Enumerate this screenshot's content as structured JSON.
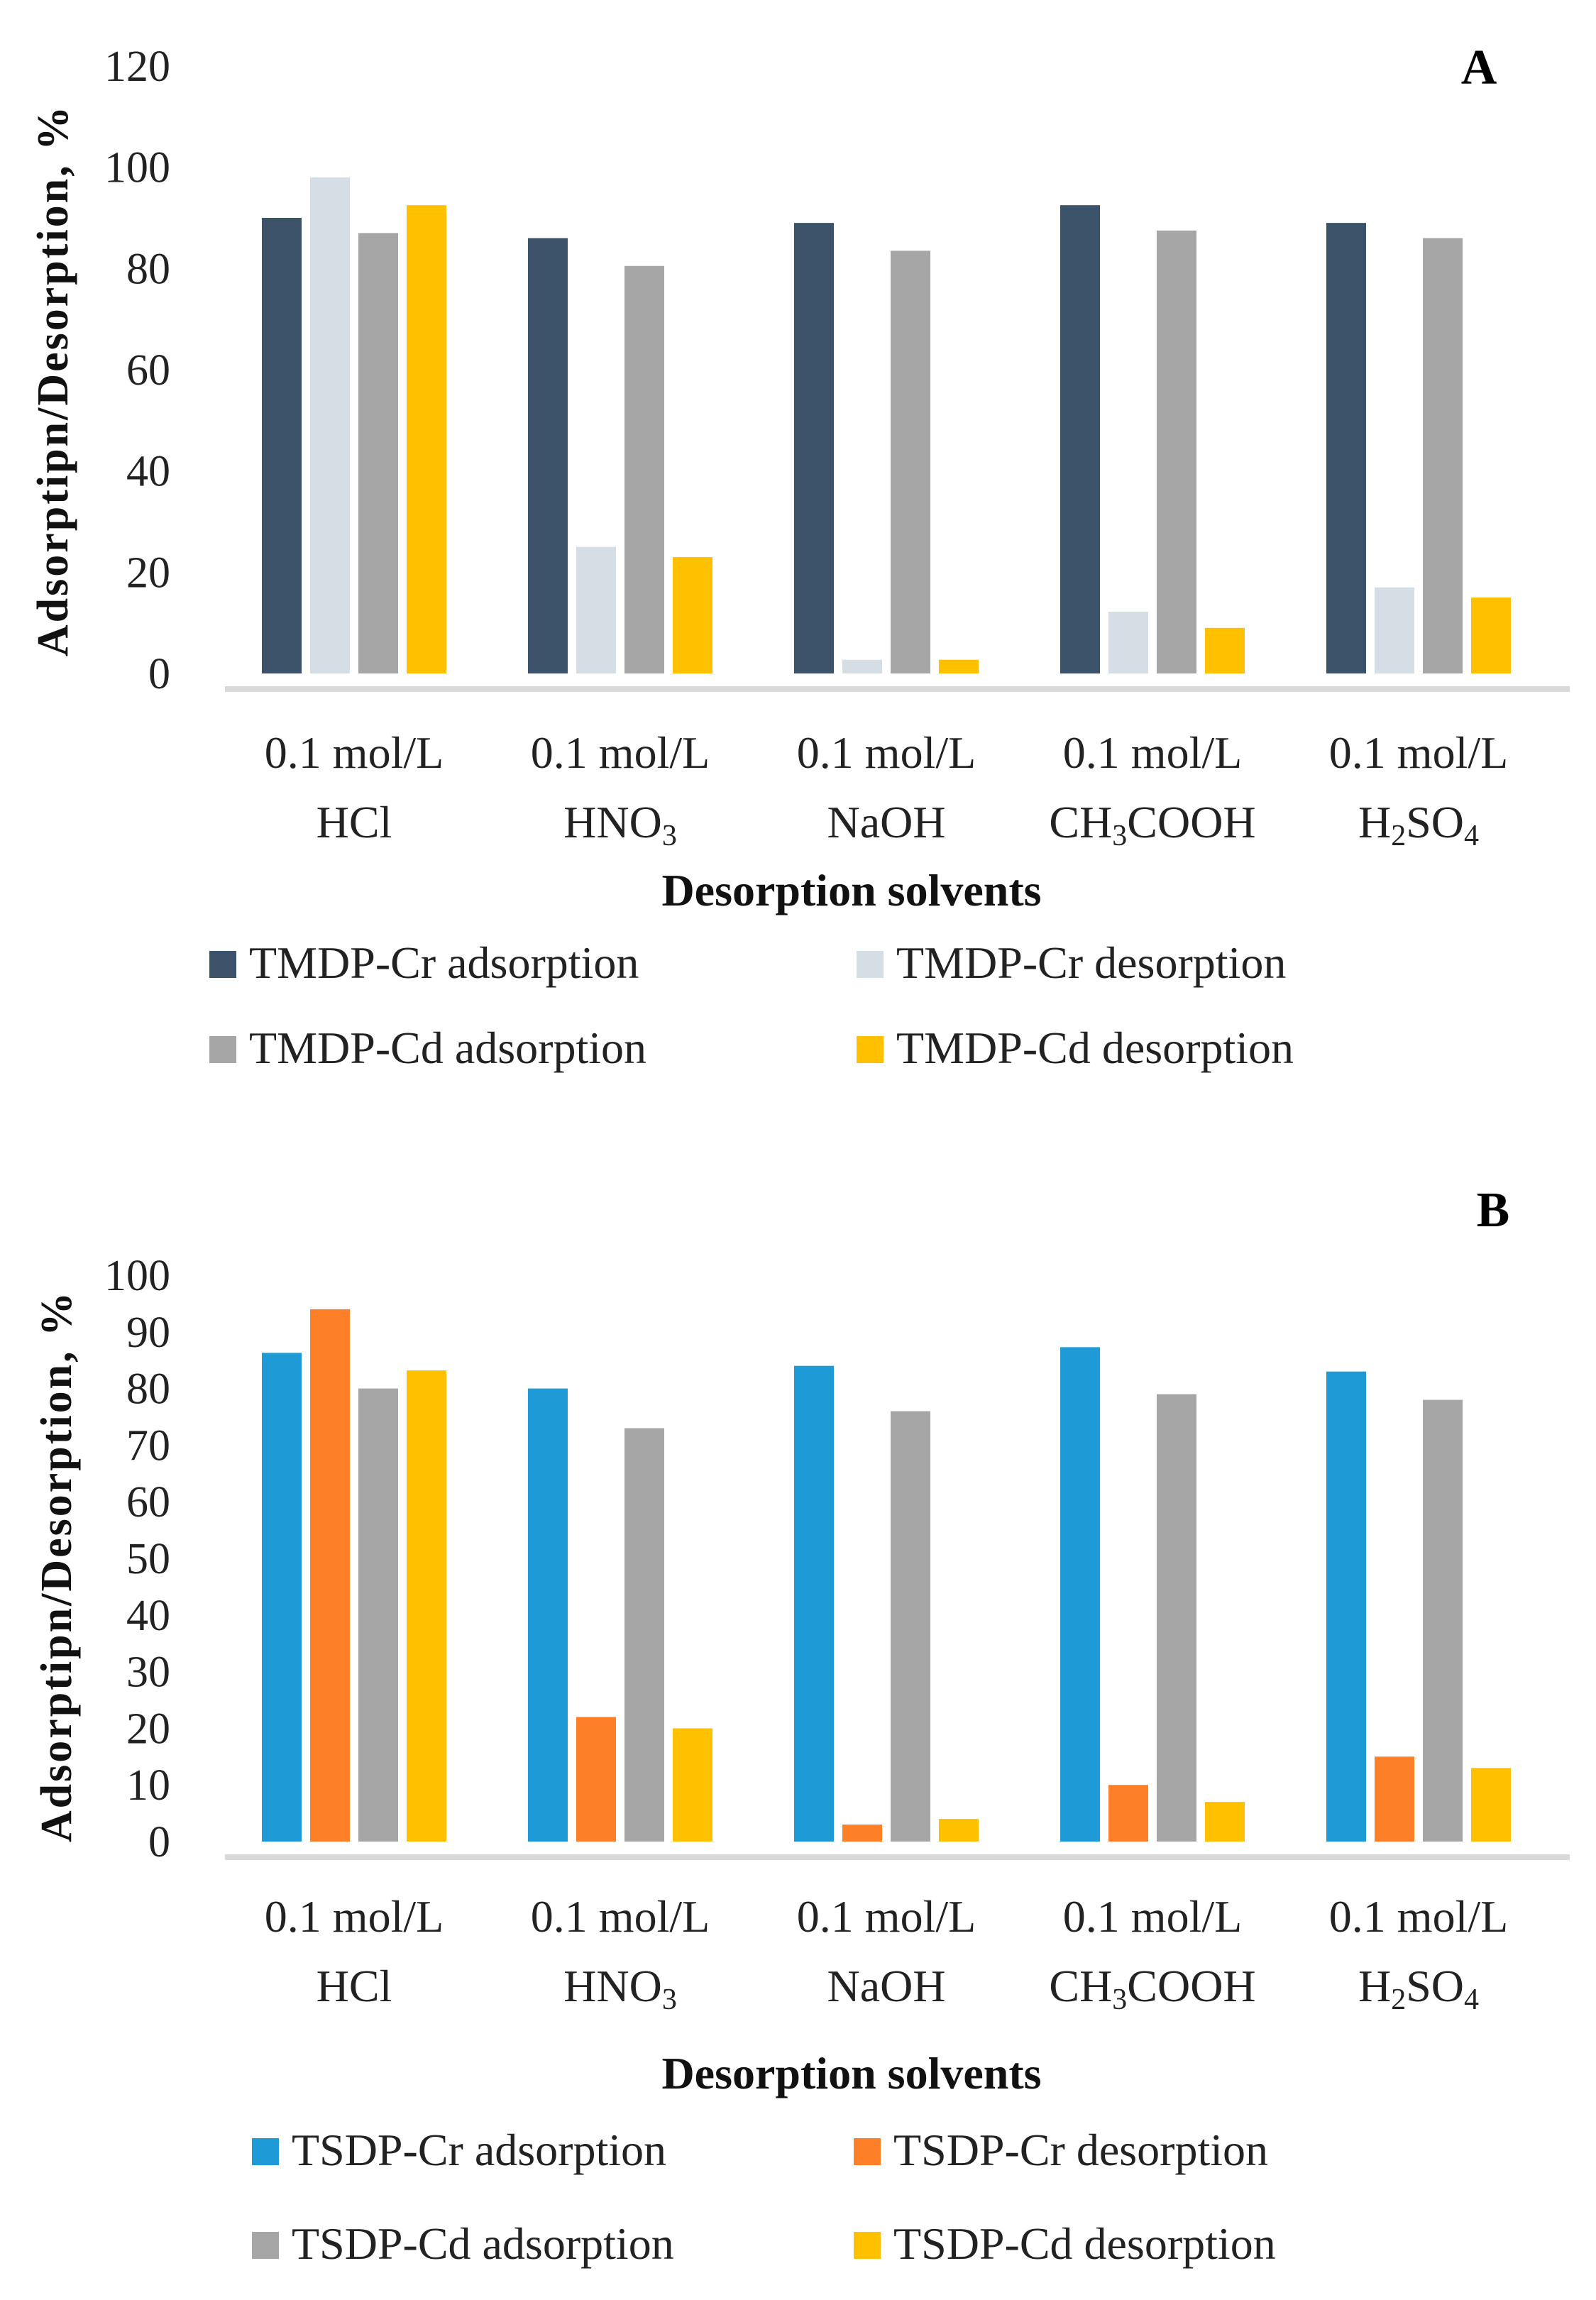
{
  "chart_data": [
    {
      "type": "bar",
      "panel_label": "A",
      "title": "",
      "xlabel": "Desorption solvents",
      "ylabel": "Adsorptipn/Desorption,  %",
      "ylim": [
        0,
        120
      ],
      "yticks": [
        "0",
        "20",
        "40",
        "60",
        "80",
        "100",
        "120"
      ],
      "ytick_step": 20,
      "grid": false,
      "legend_placement": "bottom",
      "categories": [
        {
          "line1": "0.1 mol/L",
          "line2": [
            {
              "t": "HCl"
            }
          ]
        },
        {
          "line1": "0.1 mol/L",
          "line2": [
            {
              "t": "HNO"
            },
            {
              "t": "3",
              "sub": true
            }
          ]
        },
        {
          "line1": "0.1 mol/L",
          "line2": [
            {
              "t": "NaOH"
            }
          ]
        },
        {
          "line1": "0.1 mol/L",
          "line2": [
            {
              "t": "CH"
            },
            {
              "t": "3",
              "sub": true
            },
            {
              "t": "COOH"
            }
          ]
        },
        {
          "line1": "0.1 mol/L",
          "line2": [
            {
              "t": "H"
            },
            {
              "t": "2",
              "sub": true
            },
            {
              "t": "SO"
            },
            {
              "t": "4",
              "sub": true
            }
          ]
        }
      ],
      "series": [
        {
          "name": "TMDP-Cr adsorption",
          "color": "#3b5269",
          "values": [
            90,
            86,
            89,
            92.5,
            89
          ]
        },
        {
          "name": "TMDP-Cr desorption",
          "color": "#d5dde5",
          "values": [
            98,
            25,
            2.7,
            12.2,
            17
          ]
        },
        {
          "name": "TMDP-Cd adsorption",
          "color": "#a6a6a6",
          "values": [
            87,
            80.5,
            83.5,
            87.5,
            86
          ]
        },
        {
          "name": "TMDP-Cd desorption",
          "color": "#ffc000",
          "values": [
            92.5,
            23,
            2.7,
            9,
            15
          ]
        }
      ]
    },
    {
      "type": "bar",
      "panel_label": "B",
      "title": "",
      "xlabel": "Desorption solvents",
      "ylabel": "Adsorptipn/Desorption,  %",
      "ylim": [
        0,
        100
      ],
      "yticks": [
        "0",
        "10",
        "20",
        "30",
        "40",
        "50",
        "60",
        "70",
        "80",
        "90",
        "100"
      ],
      "ytick_step": 10,
      "grid": false,
      "legend_placement": "bottom",
      "categories": [
        {
          "line1": "0.1 mol/L",
          "line2": [
            {
              "t": "HCl"
            }
          ]
        },
        {
          "line1": "0.1 mol/L",
          "line2": [
            {
              "t": "HNO"
            },
            {
              "t": "3",
              "sub": true
            }
          ]
        },
        {
          "line1": "0.1 mol/L",
          "line2": [
            {
              "t": "NaOH"
            }
          ]
        },
        {
          "line1": "0.1 mol/L",
          "line2": [
            {
              "t": "CH"
            },
            {
              "t": "3",
              "sub": true
            },
            {
              "t": "COOH"
            }
          ]
        },
        {
          "line1": "0.1 mol/L",
          "line2": [
            {
              "t": "H"
            },
            {
              "t": "2",
              "sub": true
            },
            {
              "t": "SO"
            },
            {
              "t": "4",
              "sub": true
            }
          ]
        }
      ],
      "series": [
        {
          "name": "TSDP-Cr adsorption",
          "color": "#1e9ad6",
          "values": [
            86.3,
            80,
            84,
            87.3,
            83
          ]
        },
        {
          "name": "TSDP-Cr desorption",
          "color": "#fd7f28",
          "values": [
            94,
            22,
            3,
            10,
            15
          ]
        },
        {
          "name": "TSDP-Cd adsorption",
          "color": "#a6a6a6",
          "values": [
            80,
            73,
            76,
            79,
            78
          ]
        },
        {
          "name": "TSDP-Cd desorption",
          "color": "#ffc000",
          "values": [
            83.2,
            20,
            4,
            7,
            13
          ]
        }
      ]
    }
  ]
}
